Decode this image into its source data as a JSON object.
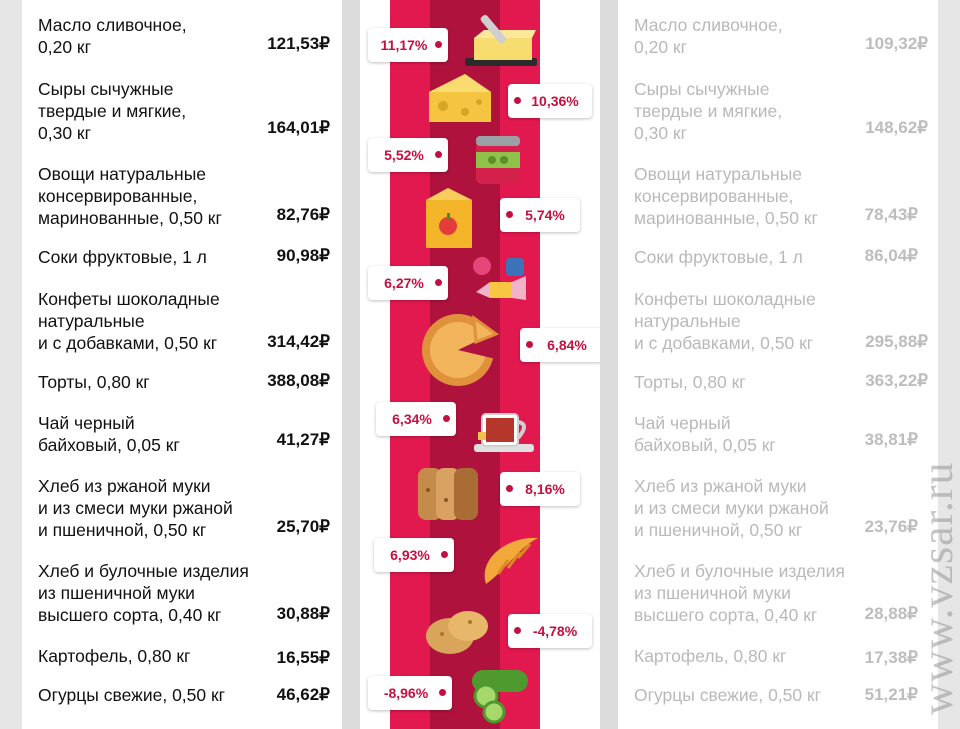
{
  "items": [
    {
      "name": "Масло сливочное,\n0,20 кг",
      "price_new": "121,53₽",
      "price_old": "109,32₽",
      "change": "11,17%"
    },
    {
      "name": "Сыры сычужные\nтвердые и мягкие,\n0,30 кг",
      "price_new": "164,01₽",
      "price_old": "148,62₽",
      "change": "10,36%"
    },
    {
      "name": "Овощи натуральные\nконсервированные,\nмаринованные, 0,50 кг",
      "price_new": "82,76₽",
      "price_old": "78,43₽",
      "change": "5,52%"
    },
    {
      "name": "Соки фруктовые, 1 л",
      "price_new": "90,98₽",
      "price_old": "86,04₽",
      "change": "5,74%"
    },
    {
      "name": "Конфеты шоколадные\nнатуральные\nи с добавками, 0,50 кг",
      "price_new": "314,42₽",
      "price_old": "295,88₽",
      "change": "6,27%"
    },
    {
      "name": "Торты, 0,80 кг",
      "price_new": "388,08₽",
      "price_old": "363,22₽",
      "change": "6,84%"
    },
    {
      "name": "Чай черный\nбайховый, 0,05 кг",
      "price_new": "41,27₽",
      "price_old": "38,81₽",
      "change": "6,34%"
    },
    {
      "name": "Хлеб из ржаной муки\nи из смеси муки ржаной\nи пшеничной, 0,50 кг",
      "price_new": "25,70₽",
      "price_old": "23,76₽",
      "change": "8,16%"
    },
    {
      "name": "Хлеб и булочные изделия\nиз пшеничной муки\nвысшего сорта, 0,40 кг",
      "price_new": "30,88₽",
      "price_old": "28,88₽",
      "change": "6,93%"
    },
    {
      "name": "Картофель, 0,80 кг",
      "price_new": "16,55₽",
      "price_old": "17,38₽",
      "change": "-4,78%"
    },
    {
      "name": "Огурцы свежие, 0,50 кг",
      "price_new": "46,62₽",
      "price_old": "51,21₽",
      "change": "-8,96%"
    }
  ],
  "icons": [
    "butter-icon",
    "cheese-icon",
    "canned-vegetables-icon",
    "juice-box-icon",
    "candy-icon",
    "cake-icon",
    "tea-cup-icon",
    "rye-bread-icon",
    "croissant-icon",
    "potato-icon",
    "cucumber-icon"
  ],
  "watermark": "www.vzsar.ru",
  "colors": {
    "accent": "#e2194f",
    "accent_dark": "#b0123e",
    "tag_text": "#c3103f"
  }
}
